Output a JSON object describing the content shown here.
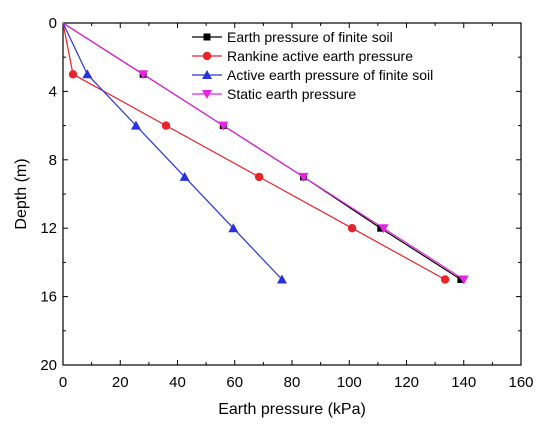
{
  "chart_data": {
    "type": "line",
    "title": "",
    "xlabel": "Earth pressure (kPa)",
    "ylabel": "Depth (m)",
    "xlim": [
      0,
      160
    ],
    "ylim": [
      0,
      20
    ],
    "y_inverted": true,
    "xticks": [
      "0",
      "20",
      "40",
      "60",
      "80",
      "100",
      "120",
      "140",
      "160"
    ],
    "yticks": [
      "0",
      "4",
      "8",
      "12",
      "16",
      "20"
    ],
    "grid": false,
    "legend_position": "top-right",
    "series": [
      {
        "name": "Earth pressure of finite soil",
        "color": "#000000",
        "marker": "square",
        "points": [
          [
            0,
            0
          ],
          [
            28,
            3
          ],
          [
            56,
            6
          ],
          [
            84,
            9
          ],
          [
            111,
            12
          ],
          [
            139,
            15
          ]
        ]
      },
      {
        "name": "Rankine active earth pressure",
        "color": "#e8232a",
        "marker": "circle",
        "points": [
          [
            0,
            0
          ],
          [
            3.5,
            3
          ],
          [
            36,
            6
          ],
          [
            68.5,
            9
          ],
          [
            101,
            12
          ],
          [
            133.5,
            15
          ]
        ]
      },
      {
        "name": "Active earth pressure of finite soil",
        "color": "#2a32e0",
        "marker": "triangle-up",
        "points": [
          [
            0,
            0
          ],
          [
            8.5,
            3
          ],
          [
            25.5,
            6
          ],
          [
            42.5,
            9
          ],
          [
            59.5,
            12
          ],
          [
            76.5,
            15
          ]
        ]
      },
      {
        "name": "Static earth pressure",
        "color": "#e426e0",
        "marker": "triangle-down",
        "points": [
          [
            0,
            0
          ],
          [
            28,
            3
          ],
          [
            56,
            6
          ],
          [
            84,
            9
          ],
          [
            112,
            12
          ],
          [
            140,
            15
          ]
        ]
      }
    ]
  }
}
